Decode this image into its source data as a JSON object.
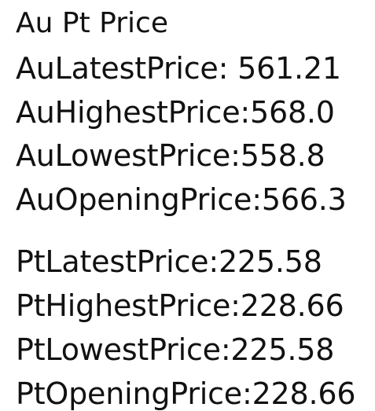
{
  "title": "Au Pt Price",
  "au": {
    "latest": "AuLatestPrice: 561.21",
    "highest": "AuHighestPrice:568.0",
    "lowest": "AuLowestPrice:558.8",
    "opening": "AuOpeningPrice:566.3"
  },
  "pt": {
    "latest": "PtLatestPrice:225.58",
    "highest": "PtHighestPrice:228.66",
    "lowest": "PtLowestPrice:225.58",
    "opening": "PtOpeningPrice:228.66"
  }
}
